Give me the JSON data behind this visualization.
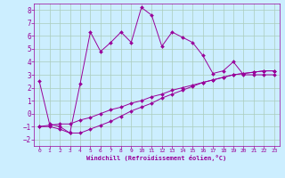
{
  "xlabel": "Windchill (Refroidissement éolien,°C)",
  "bg_color": "#cceeff",
  "grid_color": "#aaccbb",
  "line_color": "#990099",
  "xlim": [
    -0.5,
    23.5
  ],
  "ylim": [
    -2.5,
    8.5
  ],
  "yticks": [
    -2,
    -1,
    0,
    1,
    2,
    3,
    4,
    5,
    6,
    7,
    8
  ],
  "xticks": [
    0,
    1,
    2,
    3,
    4,
    5,
    6,
    7,
    8,
    9,
    10,
    11,
    12,
    13,
    14,
    15,
    16,
    17,
    18,
    19,
    20,
    21,
    22,
    23
  ],
  "series1_x": [
    0,
    1,
    2,
    3,
    4,
    5,
    6,
    7,
    8,
    9,
    10,
    11,
    12,
    13,
    14,
    15,
    16,
    17,
    18,
    19,
    20,
    21,
    22,
    23
  ],
  "series1_y": [
    2.5,
    -0.8,
    -1.0,
    -1.5,
    2.3,
    6.3,
    4.8,
    5.5,
    6.3,
    5.5,
    8.2,
    7.6,
    5.2,
    6.3,
    5.9,
    5.5,
    4.5,
    3.1,
    3.3,
    4.0,
    3.0,
    3.0,
    3.0,
    3.0
  ],
  "series2_x": [
    0,
    1,
    2,
    3,
    4,
    5,
    6,
    7,
    8,
    9,
    10,
    11,
    12,
    13,
    14,
    15,
    16,
    17,
    18,
    19,
    20,
    21,
    22,
    23
  ],
  "series2_y": [
    -1.0,
    -0.9,
    -0.8,
    -0.8,
    -0.5,
    -0.3,
    0.0,
    0.3,
    0.5,
    0.8,
    1.0,
    1.3,
    1.5,
    1.8,
    2.0,
    2.2,
    2.4,
    2.6,
    2.8,
    3.0,
    3.1,
    3.2,
    3.3,
    3.3
  ],
  "series3_x": [
    0,
    1,
    2,
    3,
    4,
    5,
    6,
    7,
    8,
    9,
    10,
    11,
    12,
    13,
    14,
    15,
    16,
    17,
    18,
    19,
    20,
    21,
    22,
    23
  ],
  "series3_y": [
    -1.0,
    -1.0,
    -1.2,
    -1.5,
    -1.5,
    -1.2,
    -0.9,
    -0.6,
    -0.2,
    0.2,
    0.5,
    0.8,
    1.2,
    1.5,
    1.8,
    2.1,
    2.4,
    2.6,
    2.8,
    3.0,
    3.1,
    3.2,
    3.3,
    3.3
  ]
}
